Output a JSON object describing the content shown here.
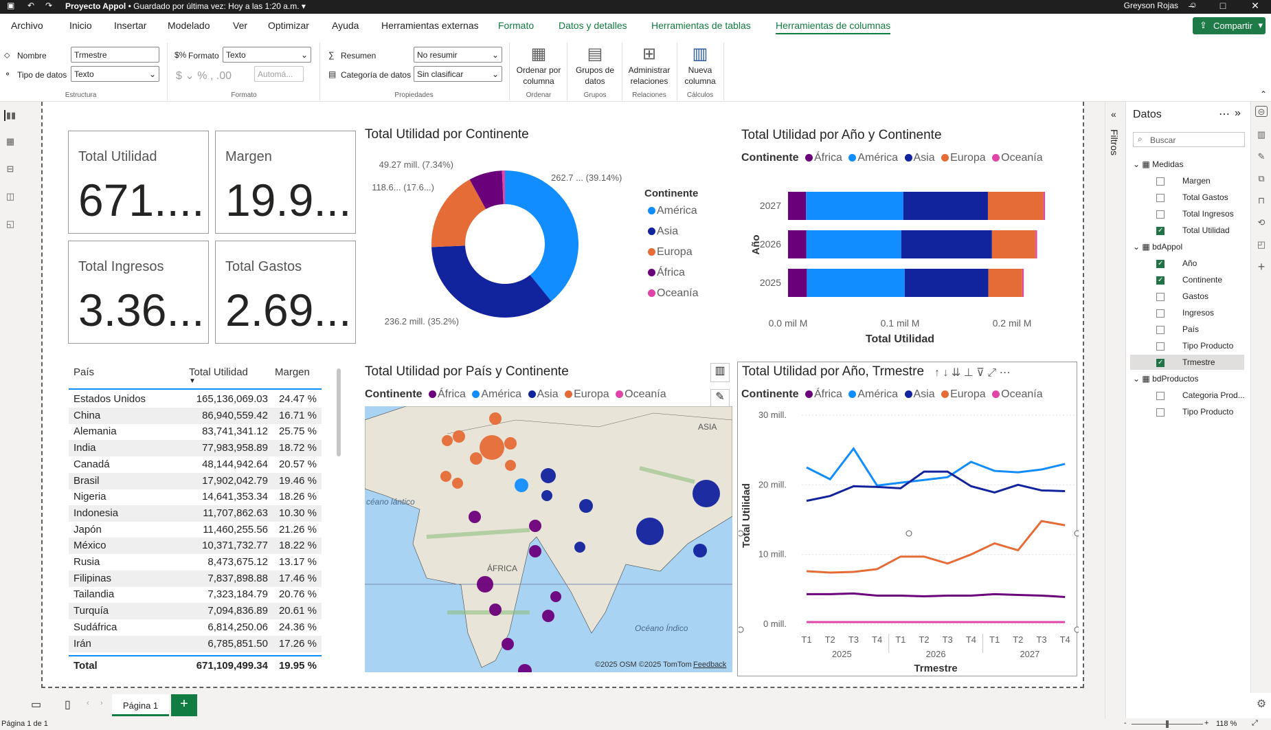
{
  "window": {
    "title": "Proyecto Appol",
    "saved": "• Guardado por última vez: Hoy a las 1:20 a.m.",
    "user": "Greyson Rojas"
  },
  "menu": [
    "Archivo",
    "Inicio",
    "Insertar",
    "Modelado",
    "Ver",
    "Optimizar",
    "Ayuda",
    "Herramientas externas",
    "Formato",
    "Datos y detalles",
    "Herramientas de tablas",
    "Herramientas de columnas"
  ],
  "share_label": "Compartir",
  "ribbon": {
    "nombre_label": "Nombre",
    "nombre_value": "Trmestre",
    "tipo_label": "Tipo de datos",
    "tipo_value": "Texto",
    "estructura": "Estructura",
    "formato_label": "Formato",
    "formato_value": "Texto",
    "auto_value": "Automá...",
    "formato_group": "Formato",
    "resumen_label": "Resumen",
    "resumen_value": "No resumir",
    "categoria_label": "Categoría de datos",
    "categoria_value": "Sin clasificar",
    "propiedades": "Propiedades",
    "ordenar": "Ordenar por columna",
    "ordenar_group": "Ordenar",
    "grupos": "Grupos de datos",
    "grupos_group": "Grupos",
    "admin": "Administrar relaciones",
    "admin_group": "Relaciones",
    "nueva": "Nueva columna",
    "nueva_group": "Cálculos"
  },
  "cards": [
    {
      "label": "Total Utilidad",
      "value": "671...."
    },
    {
      "label": "Margen",
      "value": "19.9..."
    },
    {
      "label": "Total Ingresos",
      "value": "3.36..."
    },
    {
      "label": "Total Gastos",
      "value": "2.69..."
    }
  ],
  "colors": {
    "africa": "#6b007b",
    "america": "#118dff",
    "asia": "#12239e",
    "europa": "#e66c37",
    "oceania": "#e044a7"
  },
  "legend": {
    "title": "Continente",
    "items": [
      "África",
      "América",
      "Asia",
      "Europa",
      "Oceanía"
    ]
  },
  "donut": {
    "title": "Total Utilidad por Continente",
    "legend_title": "Continente",
    "legend_items": [
      "América",
      "Asia",
      "Europa",
      "África",
      "Oceanía"
    ],
    "labels": [
      "262.7 ... (39.14%)",
      "236.2 mill. (35.2%)",
      "118.6... (17.6...)",
      "49.27 mill. (7.34%)"
    ]
  },
  "table": {
    "headers": [
      "País",
      "Total Utilidad",
      "Margen"
    ],
    "rows": [
      [
        "Estados Unidos",
        "165,136,069.03",
        "24.47 %"
      ],
      [
        "China",
        "86,940,559.42",
        "16.71 %"
      ],
      [
        "Alemania",
        "83,741,341.12",
        "25.75 %"
      ],
      [
        "India",
        "77,983,958.89",
        "18.72 %"
      ],
      [
        "Canadá",
        "48,144,942.64",
        "20.57 %"
      ],
      [
        "Brasil",
        "17,902,042.79",
        "19.46 %"
      ],
      [
        "Nigeria",
        "14,641,353.34",
        "18.26 %"
      ],
      [
        "Indonesia",
        "11,707,862.63",
        "10.30 %"
      ],
      [
        "Japón",
        "11,460,255.56",
        "21.26 %"
      ],
      [
        "México",
        "10,371,732.77",
        "18.22 %"
      ],
      [
        "Rusia",
        "8,473,675.12",
        "13.17 %"
      ],
      [
        "Filipinas",
        "7,837,898.88",
        "17.46 %"
      ],
      [
        "Tailandia",
        "7,323,184.79",
        "20.76 %"
      ],
      [
        "Turquía",
        "7,094,836.89",
        "20.61 %"
      ],
      [
        "Sudáfrica",
        "6,814,250.06",
        "24.36 %"
      ],
      [
        "Irán",
        "6,785,851.50",
        "17.26 %"
      ]
    ],
    "total": [
      "Total",
      "671,109,499.34",
      "19.95 %"
    ]
  },
  "map": {
    "title": "Total Utilidad por País y Continente",
    "labels": [
      "ASIA",
      "ÁFRICA",
      "Océano Índico",
      "céano lántico"
    ],
    "credits": "©2025 OSM ©2025 TomTom",
    "feedback": "Feedback"
  },
  "line": {
    "title": "Total Utilidad por Año, Trmestre",
    "ylabel": "Total Utilidad",
    "xlabel": "Trmestre",
    "years": [
      "2025",
      "2026",
      "2027"
    ],
    "yticks": [
      "30 mill.",
      "20 mill.",
      "10 mill.",
      "0 mill."
    ]
  },
  "sidebar": {
    "title": "Datos",
    "search": "Buscar",
    "filtros": "Filtros",
    "tables": [
      {
        "name": "Medidas",
        "fields": [
          {
            "n": "Margen",
            "c": false
          },
          {
            "n": "Total Gastos",
            "c": false
          },
          {
            "n": "Total Ingresos",
            "c": false
          },
          {
            "n": "Total Utilidad",
            "c": true
          }
        ]
      },
      {
        "name": "bdAppol",
        "fields": [
          {
            "n": "Año",
            "c": true
          },
          {
            "n": "Continente",
            "c": true
          },
          {
            "n": "Gastos",
            "c": false
          },
          {
            "n": "Ingresos",
            "c": false
          },
          {
            "n": "País",
            "c": false
          },
          {
            "n": "Tipo Producto",
            "c": false
          },
          {
            "n": "Trmestre",
            "c": true
          }
        ]
      },
      {
        "name": "bdProductos",
        "fields": [
          {
            "n": "Categoria Prod...",
            "c": false
          },
          {
            "n": "Tipo Producto",
            "c": false
          }
        ]
      }
    ]
  },
  "page_tab": "Página 1",
  "status": {
    "page": "Página 1 de 1",
    "zoom": "118 %"
  },
  "chart_data": [
    {
      "type": "pie",
      "title": "Total Utilidad por Continente",
      "categories": [
        "América",
        "Asia",
        "Europa",
        "África",
        "Oceanía"
      ],
      "values": [
        262.7,
        236.2,
        118.6,
        49.27,
        4.3
      ],
      "unit": "mill."
    },
    {
      "type": "bar",
      "title": "Total Utilidad por Año y Continente",
      "ylabel": "Año",
      "xlabel": "Total Utilidad",
      "categories": [
        "2027",
        "2026",
        "2025"
      ],
      "xticks": [
        "0.0 mil M",
        "0.1 mil M",
        "0.2 mil M"
      ],
      "xlim": [
        0,
        0.25
      ],
      "series": [
        {
          "name": "África",
          "values": [
            0.0161,
            0.0163,
            0.0168
          ]
        },
        {
          "name": "América",
          "values": [
            0.0868,
            0.0848,
            0.0874
          ]
        },
        {
          "name": "Asia",
          "values": [
            0.0756,
            0.081,
            0.0747
          ]
        },
        {
          "name": "Europa",
          "values": [
            0.0495,
            0.0389,
            0.0302
          ]
        },
        {
          "name": "Oceanía",
          "values": [
            0.0015,
            0.0014,
            0.0014
          ]
        }
      ]
    },
    {
      "type": "line",
      "title": "Total Utilidad por Año, Trmestre",
      "ylabel": "Total Utilidad",
      "xlabel": "Trmestre",
      "categories": [
        "T1",
        "T2",
        "T3",
        "T4",
        "T1",
        "T2",
        "T3",
        "T4",
        "T1",
        "T2",
        "T3",
        "T4"
      ],
      "ylim": [
        0,
        30
      ],
      "series": [
        {
          "name": "América",
          "values": [
            22.5,
            20.8,
            25.2,
            19.9,
            20.3,
            20.7,
            21.1,
            23.3,
            22,
            21.8,
            22.2,
            23
          ]
        },
        {
          "name": "Asia",
          "values": [
            17.7,
            18.4,
            19.8,
            19.7,
            19.5,
            21.9,
            21.9,
            19.8,
            18.9,
            20,
            19.2,
            19.1
          ]
        },
        {
          "name": "Europa",
          "values": [
            7.6,
            7.4,
            7.5,
            7.9,
            9.7,
            9.7,
            8.7,
            10,
            11.6,
            10.6,
            14.8,
            14.2
          ]
        },
        {
          "name": "África",
          "values": [
            4.3,
            4.3,
            4.4,
            4.1,
            4.1,
            4,
            4.1,
            4.1,
            4.3,
            4.2,
            4.1,
            3.9
          ]
        },
        {
          "name": "Oceanía",
          "values": [
            0.3,
            0.3,
            0.3,
            0.3,
            0.3,
            0.3,
            0.3,
            0.3,
            0.3,
            0.3,
            0.3,
            0.3
          ]
        }
      ]
    }
  ]
}
